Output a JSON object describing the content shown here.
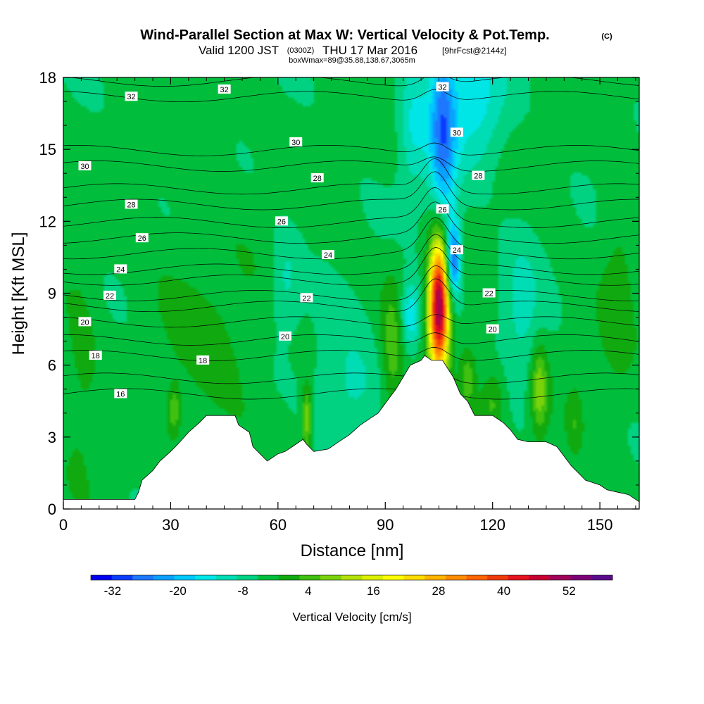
{
  "chart_data": {
    "type": "heatmap",
    "title": "Wind-Parallel Section at Max W: Vertical Velocity & Pot.Temp.",
    "title_mark": "(C)",
    "subtitle_valid": "Valid 1200 JST",
    "subtitle_utc": "(0300Z)",
    "subtitle_date": "THU 17 Mar 2016",
    "subtitle_fcst": "[9hrFcst@2144z]",
    "box_note": "boxWmax=89@35.88,138.67,3065m",
    "xlabel": "Distance [nm]",
    "ylabel": "Height [Kft MSL]",
    "xlim": [
      0,
      161
    ],
    "ylim": [
      0,
      18
    ],
    "x_ticks": [
      "0",
      "30",
      "60",
      "90",
      "120",
      "150"
    ],
    "y_ticks": [
      "0",
      "3",
      "6",
      "9",
      "12",
      "15",
      "18"
    ],
    "colorbar": {
      "label": "Vertical Velocity [cm/s]",
      "ticks": [
        "-32",
        "-20",
        "-8",
        "4",
        "16",
        "28",
        "40",
        "52"
      ],
      "min": -36,
      "max": 60,
      "colors": [
        "#0000f0",
        "#0a3cff",
        "#1e78ff",
        "#0aa0ff",
        "#00c8ff",
        "#00e6e6",
        "#00dcb4",
        "#00d282",
        "#00be3c",
        "#10aa10",
        "#40c010",
        "#7ad20a",
        "#b4e10a",
        "#dcf000",
        "#ffff00",
        "#ffdc00",
        "#ffb400",
        "#ff8c00",
        "#ff6400",
        "#f03c0a",
        "#e6141e",
        "#c80032",
        "#a0005a",
        "#7d0078",
        "#5a0a8c"
      ]
    },
    "terrain_kft": [
      [
        0,
        0.4
      ],
      [
        20,
        0.4
      ],
      [
        21,
        0.7
      ],
      [
        22,
        1.2
      ],
      [
        25,
        1.6
      ],
      [
        27,
        2
      ],
      [
        30,
        2.4
      ],
      [
        32,
        2.7
      ],
      [
        35,
        3.2
      ],
      [
        38,
        3.6
      ],
      [
        40,
        3.9
      ],
      [
        48,
        3.9
      ],
      [
        49,
        3.5
      ],
      [
        52,
        3.2
      ],
      [
        53,
        2.6
      ],
      [
        55,
        2.3
      ],
      [
        57,
        2.0
      ],
      [
        60,
        2.3
      ],
      [
        62,
        2.4
      ],
      [
        64,
        2.6
      ],
      [
        67,
        2.9
      ],
      [
        68,
        2.7
      ],
      [
        70,
        2.4
      ],
      [
        74,
        2.5
      ],
      [
        77,
        2.8
      ],
      [
        80,
        3.1
      ],
      [
        83,
        3.5
      ],
      [
        86,
        3.8
      ],
      [
        88,
        4
      ],
      [
        91,
        4.6
      ],
      [
        93,
        5.0
      ],
      [
        95,
        5.5
      ],
      [
        97,
        6.0
      ],
      [
        100,
        6.2
      ],
      [
        101,
        6.4
      ],
      [
        103,
        6.2
      ],
      [
        106,
        6.2
      ],
      [
        109,
        5.5
      ],
      [
        111,
        4.8
      ],
      [
        113,
        4.5
      ],
      [
        115,
        3.9
      ],
      [
        120,
        3.9
      ],
      [
        123,
        3.6
      ],
      [
        125,
        3.3
      ],
      [
        127,
        2.9
      ],
      [
        130,
        2.8
      ],
      [
        135,
        2.8
      ],
      [
        138,
        2.6
      ],
      [
        140,
        2.2
      ],
      [
        141,
        2
      ],
      [
        142,
        1.8
      ],
      [
        144,
        1.5
      ],
      [
        146,
        1.2
      ],
      [
        150,
        1.0
      ],
      [
        152,
        0.8
      ],
      [
        155,
        0.7
      ],
      [
        158,
        0.6
      ],
      [
        161,
        0.3
      ]
    ],
    "theta_lines": [
      {
        "value": 16,
        "label_at": [
          [
            16,
            4.8
          ]
        ]
      },
      {
        "value": 18,
        "label_at": [
          [
            9,
            6.4
          ],
          [
            39,
            6.2
          ]
        ]
      },
      {
        "value": 20,
        "label_at": [
          [
            6,
            7.8
          ],
          [
            62,
            7.2
          ],
          [
            120,
            7.5
          ]
        ]
      },
      {
        "value": 22,
        "label_at": [
          [
            13,
            8.9
          ],
          [
            68,
            8.8
          ],
          [
            119,
            9.0
          ]
        ]
      },
      {
        "value": 24,
        "label_at": [
          [
            16,
            10.0
          ],
          [
            74,
            10.6
          ],
          [
            110,
            10.8
          ]
        ]
      },
      {
        "value": 26,
        "label_at": [
          [
            22,
            11.3
          ],
          [
            61,
            12.0
          ],
          [
            106,
            12.5
          ]
        ]
      },
      {
        "value": 28,
        "label_at": [
          [
            19,
            12.7
          ],
          [
            71,
            13.8
          ],
          [
            116,
            13.9
          ]
        ]
      },
      {
        "value": 30,
        "label_at": [
          [
            6,
            14.3
          ],
          [
            65,
            15.3
          ],
          [
            110,
            15.7
          ]
        ]
      },
      {
        "value": 32,
        "label_at": [
          [
            19,
            17.2
          ],
          [
            45,
            17.5
          ],
          [
            106,
            17.6
          ]
        ]
      }
    ],
    "w_features": [
      {
        "x": 105,
        "z": 8.5,
        "sx": 2.0,
        "sz": 2.0,
        "w": 58
      },
      {
        "x": 109,
        "z": 10.4,
        "sx": 1.5,
        "sz": 1.1,
        "w": -26
      },
      {
        "x": 106,
        "z": 15.5,
        "sx": 2.6,
        "sz": 3.2,
        "w": -20
      },
      {
        "x": 97,
        "z": 8.0,
        "sx": 2.0,
        "sz": 1.0,
        "w": -14
      },
      {
        "x": 92,
        "z": 6.5,
        "sx": 2.3,
        "sz": 2.0,
        "w": 9
      },
      {
        "x": 68,
        "z": 3.8,
        "sx": 1.0,
        "sz": 1.0,
        "w": 14
      },
      {
        "x": 133,
        "z": 5.0,
        "sx": 1.6,
        "sz": 1.3,
        "w": 13
      },
      {
        "x": 120,
        "z": 4.5,
        "sx": 2.5,
        "sz": 1.0,
        "w": 8
      },
      {
        "x": 113,
        "z": 5.5,
        "sx": 1.8,
        "sz": 1.0,
        "w": 10
      },
      {
        "x": 80,
        "z": 4.8,
        "sx": 7.0,
        "sz": 2.0,
        "w": -7
      },
      {
        "x": 45,
        "z": 5.5,
        "sx": 9.0,
        "sz": 3.0,
        "w": 3
      },
      {
        "x": 31,
        "z": 4.1,
        "sx": 1.2,
        "sz": 0.7,
        "w": 9
      },
      {
        "x": 5,
        "z": 6.0,
        "sx": 3.5,
        "sz": 3.0,
        "w": 4
      },
      {
        "x": 30,
        "z": 9.0,
        "sx": 8.0,
        "sz": 2.0,
        "w": 2
      },
      {
        "x": 115,
        "z": 17.0,
        "sx": 6.0,
        "sz": 2.0,
        "w": -11
      },
      {
        "x": 98,
        "z": 16.0,
        "sx": 3.0,
        "sz": 2.0,
        "w": -9
      },
      {
        "x": 155,
        "z": 9.5,
        "sx": 3.5,
        "sz": 4.0,
        "w": 4
      },
      {
        "x": 128,
        "z": 8.0,
        "sx": 4.0,
        "sz": 2.5,
        "w": -6
      },
      {
        "x": 40,
        "z": 15.5,
        "sx": 6.0,
        "sz": 2.5,
        "w": 2
      },
      {
        "x": 62,
        "z": 9.5,
        "sx": 3.0,
        "sz": 1.5,
        "w": -6
      },
      {
        "x": 143,
        "z": 3.5,
        "sx": 1.5,
        "sz": 1.0,
        "w": 5
      }
    ],
    "background_w": -4
  }
}
